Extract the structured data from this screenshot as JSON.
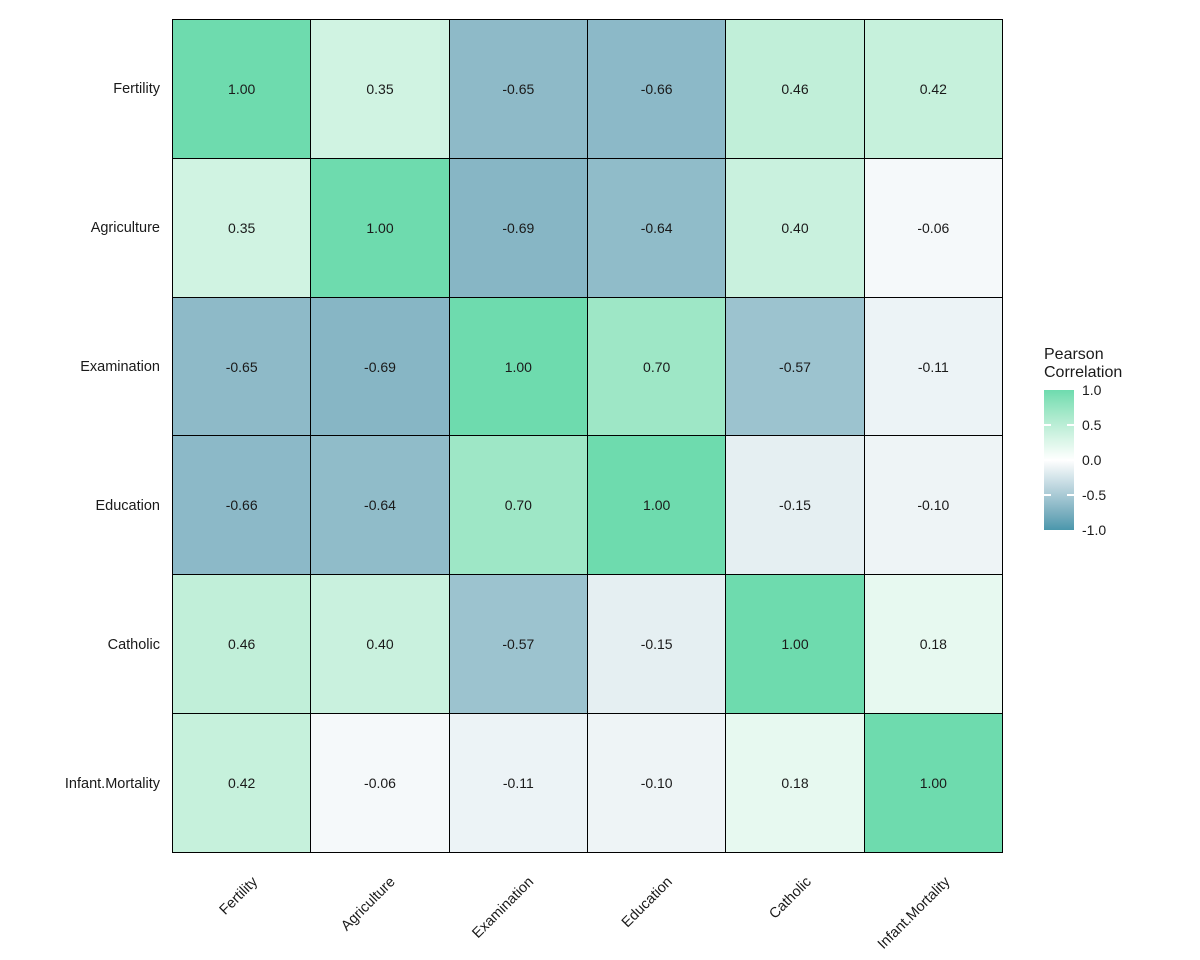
{
  "chart_data": {
    "type": "heatmap",
    "title": "",
    "variables": [
      "Fertility",
      "Agriculture",
      "Examination",
      "Education",
      "Catholic",
      "Infant.Mortality"
    ],
    "matrix": [
      [
        1.0,
        0.35,
        -0.65,
        -0.66,
        0.46,
        0.42
      ],
      [
        0.35,
        1.0,
        -0.69,
        -0.64,
        0.4,
        -0.06
      ],
      [
        -0.65,
        -0.69,
        1.0,
        0.7,
        -0.57,
        -0.11
      ],
      [
        -0.66,
        -0.64,
        0.7,
        1.0,
        -0.15,
        -0.1
      ],
      [
        0.46,
        0.4,
        -0.57,
        -0.15,
        1.0,
        0.18
      ],
      [
        0.42,
        -0.06,
        -0.11,
        -0.1,
        0.18,
        1.0
      ]
    ],
    "cell_value_decimals": 2,
    "x_axis": {
      "angle_deg": 45,
      "labels_same_as_variables": true
    },
    "y_axis": {
      "labels_same_as_variables": true
    },
    "legend": {
      "title_lines": [
        "Pearson",
        "Correlation"
      ],
      "ticks": [
        {
          "label": "1.0",
          "value": 1.0
        },
        {
          "label": "0.5",
          "value": 0.5
        },
        {
          "label": "0.0",
          "value": 0.0
        },
        {
          "label": "-0.5",
          "value": -0.5
        },
        {
          "label": "-1.0",
          "value": -1.0
        }
      ],
      "limits": [
        -1,
        1
      ],
      "position": "right"
    },
    "colors": {
      "high": "#6EDBAE",
      "mid": "#FFFFFF",
      "low": "#4A97AC",
      "cell_border": "#000000",
      "text": "#1A1A1A",
      "legend_tick": "#FFFFFF"
    },
    "grid": "off",
    "interpolation": "lab"
  }
}
